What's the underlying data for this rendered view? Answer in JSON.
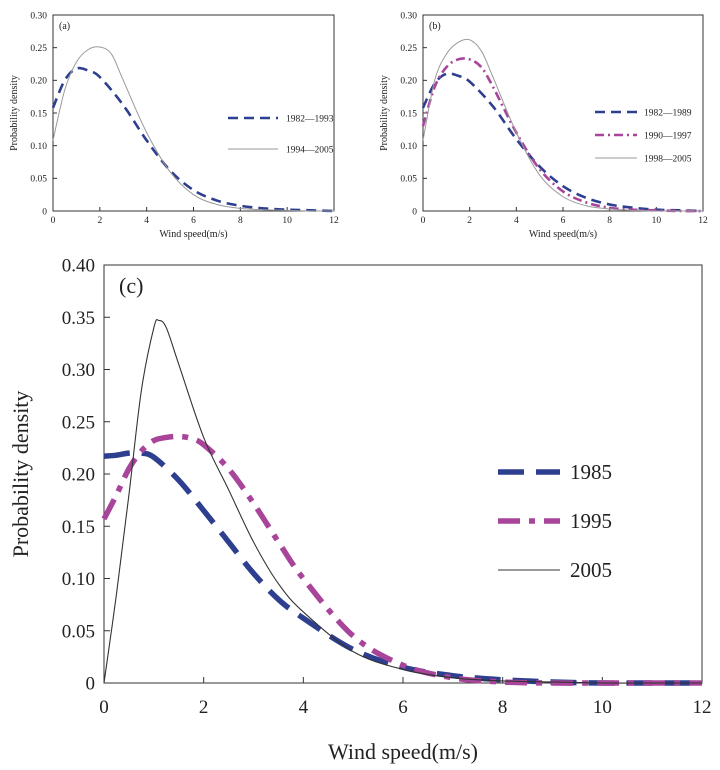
{
  "colors": {
    "blue": "#2e3f8f",
    "magenta": "#a8449a",
    "gray": "#9a9a9a",
    "black": "#333333"
  },
  "chart_data": [
    {
      "type": "line",
      "panel_label": "(a)",
      "xlabel": "Wind speed(m/s)",
      "ylabel": "Probability density",
      "xlim": [
        0,
        12
      ],
      "ylim": [
        0,
        0.3
      ],
      "xticks": [
        0,
        2,
        4,
        6,
        8,
        10,
        12
      ],
      "yticks": [
        0,
        0.05,
        0.1,
        0.15,
        0.2,
        0.25,
        0.3
      ],
      "ytick_labels": [
        "0",
        "0.05",
        "0.10",
        "0.15",
        "0.20",
        "0.25",
        "0.30"
      ],
      "legend_position": "right",
      "series": [
        {
          "name": "1982—1993",
          "style": "dash",
          "color": "#2e3f8f",
          "x": [
            0,
            0.5,
            1,
            1.5,
            2,
            3,
            4,
            5,
            6,
            7,
            8,
            9,
            10,
            11,
            12
          ],
          "values": [
            0.158,
            0.2,
            0.218,
            0.215,
            0.205,
            0.162,
            0.108,
            0.062,
            0.032,
            0.016,
            0.008,
            0.004,
            0.002,
            0.001,
            0.0
          ]
        },
        {
          "name": "1994—2005",
          "style": "solid",
          "color": "#9a9a9a",
          "x": [
            0,
            0.5,
            1,
            1.5,
            2,
            2.5,
            3,
            4,
            5,
            6,
            7,
            8,
            9,
            10,
            11,
            12
          ],
          "values": [
            0.108,
            0.185,
            0.228,
            0.247,
            0.251,
            0.24,
            0.2,
            0.12,
            0.06,
            0.025,
            0.01,
            0.004,
            0.002,
            0.001,
            0.0,
            0.0
          ]
        }
      ]
    },
    {
      "type": "line",
      "panel_label": "(b)",
      "xlabel": "Wind speed(m/s)",
      "ylabel": "Probability density",
      "xlim": [
        0,
        12
      ],
      "ylim": [
        0,
        0.3
      ],
      "xticks": [
        0,
        2,
        4,
        6,
        8,
        10,
        12
      ],
      "yticks": [
        0,
        0.05,
        0.1,
        0.15,
        0.2,
        0.25,
        0.3
      ],
      "ytick_labels": [
        "0",
        "0.05",
        "0.10",
        "0.15",
        "0.20",
        "0.25",
        "0.30"
      ],
      "legend_position": "right",
      "series": [
        {
          "name": "1982—1989",
          "style": "dash",
          "color": "#2e3f8f",
          "x": [
            0,
            0.5,
            1,
            1.5,
            2,
            3,
            4,
            5,
            6,
            7,
            8,
            9,
            10,
            11,
            12
          ],
          "values": [
            0.158,
            0.195,
            0.21,
            0.207,
            0.198,
            0.16,
            0.11,
            0.068,
            0.038,
            0.02,
            0.01,
            0.005,
            0.002,
            0.001,
            0.0
          ]
        },
        {
          "name": "1990—1997",
          "style": "dashdot",
          "color": "#a8449a",
          "x": [
            0,
            0.5,
            1,
            1.5,
            2,
            2.5,
            3,
            4,
            5,
            6,
            7,
            8,
            9,
            10,
            11,
            12
          ],
          "values": [
            0.13,
            0.19,
            0.22,
            0.232,
            0.232,
            0.22,
            0.19,
            0.12,
            0.064,
            0.03,
            0.013,
            0.005,
            0.002,
            0.001,
            0.0,
            0.0
          ]
        },
        {
          "name": "1998—2005",
          "style": "solid",
          "color": "#9a9a9a",
          "x": [
            0,
            0.5,
            1,
            1.5,
            2,
            2.5,
            3,
            4,
            5,
            6,
            7,
            8,
            9,
            10,
            11,
            12
          ],
          "values": [
            0.108,
            0.2,
            0.24,
            0.258,
            0.262,
            0.245,
            0.205,
            0.12,
            0.055,
            0.022,
            0.008,
            0.003,
            0.001,
            0.0,
            0.0,
            0.0
          ]
        }
      ]
    },
    {
      "type": "line",
      "panel_label": "(c)",
      "xlabel": "Wind speed(m/s)",
      "ylabel": "Probability density",
      "xlim": [
        0,
        12
      ],
      "ylim": [
        0,
        0.4
      ],
      "xticks": [
        0,
        2,
        4,
        6,
        8,
        10,
        12
      ],
      "yticks": [
        0,
        0.05,
        0.1,
        0.15,
        0.2,
        0.25,
        0.3,
        0.35,
        0.4
      ],
      "ytick_labels": [
        "0",
        "0.05",
        "0.10",
        "0.15",
        "0.20",
        "0.25",
        "0.30",
        "0.35",
        "0.40"
      ],
      "legend_position": "right",
      "series": [
        {
          "name": "1985",
          "style": "dash",
          "color": "#2e3f8f",
          "x": [
            0,
            0.25,
            0.5,
            0.75,
            1,
            1.5,
            2,
            2.5,
            3,
            3.5,
            4,
            5,
            6,
            7,
            8,
            9,
            10,
            11,
            12
          ],
          "values": [
            0.217,
            0.218,
            0.22,
            0.22,
            0.216,
            0.194,
            0.165,
            0.135,
            0.105,
            0.08,
            0.062,
            0.032,
            0.015,
            0.007,
            0.003,
            0.001,
            0.0,
            0.0,
            0.0
          ]
        },
        {
          "name": "1995",
          "style": "dashdot",
          "color": "#a8449a",
          "x": [
            0,
            0.25,
            0.5,
            0.75,
            1,
            1.25,
            1.5,
            1.75,
            2,
            2.5,
            3,
            3.5,
            4,
            5,
            6,
            7,
            8,
            9,
            10,
            11,
            12
          ],
          "values": [
            0.157,
            0.18,
            0.205,
            0.222,
            0.232,
            0.235,
            0.236,
            0.234,
            0.228,
            0.205,
            0.172,
            0.135,
            0.1,
            0.045,
            0.017,
            0.005,
            0.001,
            0.0,
            0.0,
            0.0,
            0.0
          ]
        },
        {
          "name": "2005",
          "style": "solid",
          "color": "#333333",
          "x": [
            0,
            0.25,
            0.5,
            0.75,
            1,
            1.1,
            1.25,
            1.5,
            2,
            2.5,
            3,
            3.5,
            4,
            5,
            6,
            7,
            8,
            9,
            10,
            11,
            12
          ],
          "values": [
            0.0,
            0.085,
            0.18,
            0.28,
            0.34,
            0.347,
            0.34,
            0.305,
            0.235,
            0.185,
            0.135,
            0.095,
            0.068,
            0.03,
            0.013,
            0.005,
            0.002,
            0.001,
            0.0,
            0.0,
            0.0
          ]
        }
      ]
    }
  ]
}
